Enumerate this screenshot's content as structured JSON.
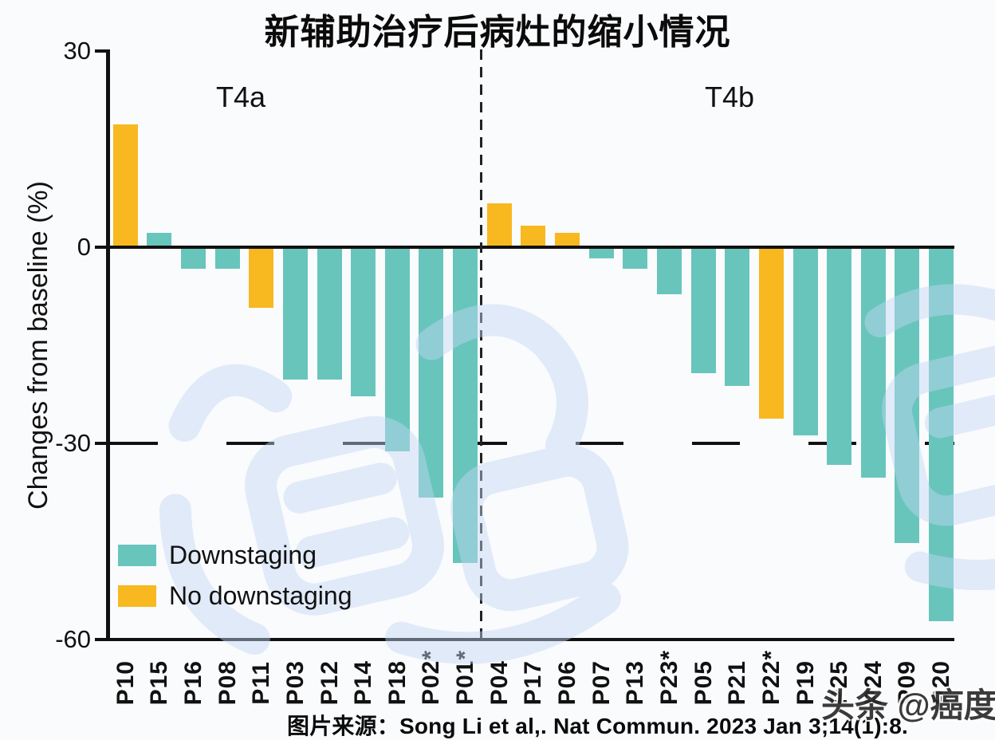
{
  "title": "新辅助治疗后病灶的缩小情况",
  "y_axis": {
    "label": "Changes from baseline (%)"
  },
  "group_labels": {
    "t4a": "T4a",
    "t4b": "T4b"
  },
  "legend": {
    "items": [
      {
        "label": "Downstaging",
        "key": "downstaging",
        "color": "#68c5bc"
      },
      {
        "label": "No downstaging",
        "key": "no_downstaging",
        "color": "#f8b81f"
      }
    ]
  },
  "caption": "图片来源：Song Li et al,. Nat Commun. 2023 Jan 3;14(1):8.",
  "watermarks": {
    "corner": "头条 @癌度",
    "large": "癌度"
  },
  "colors": {
    "downstaging": "#68c5bc",
    "no_downstaging": "#f8b81f",
    "axis": "#111111",
    "watermark_blue": "#c3d7f4",
    "background": "#fafbfd"
  },
  "chart_data": {
    "type": "bar",
    "title": "新辅助治疗后病灶的缩小情况",
    "xlabel": "",
    "ylabel": "Changes from baseline (%)",
    "ylim": [
      -60,
      30
    ],
    "yticks": [
      30,
      0,
      -30,
      -60
    ],
    "reference_line_y": -30,
    "grid": false,
    "legend_position": "lower left",
    "groups": [
      {
        "label": "T4a",
        "patients": [
          "P10",
          "P15",
          "P16",
          "P08",
          "P11",
          "P03",
          "P12",
          "P14",
          "P18",
          "P02*",
          "P01*"
        ]
      },
      {
        "label": "T4b",
        "patients": [
          "P04",
          "P17",
          "P06",
          "P07",
          "P13",
          "P23*",
          "P05",
          "P21",
          "P22*",
          "P19",
          "P25",
          "P24",
          "P09",
          "P20"
        ]
      }
    ],
    "bars": [
      {
        "label": "P10",
        "value": 18.5,
        "status": "no_downstaging",
        "group": "T4a"
      },
      {
        "label": "P15",
        "value": 2,
        "status": "downstaging",
        "group": "T4a"
      },
      {
        "label": "P16",
        "value": -3,
        "status": "downstaging",
        "group": "T4a"
      },
      {
        "label": "P08",
        "value": -3,
        "status": "downstaging",
        "group": "T4a"
      },
      {
        "label": "P11",
        "value": -9,
        "status": "no_downstaging",
        "group": "T4a"
      },
      {
        "label": "P03",
        "value": -20,
        "status": "downstaging",
        "group": "T4a"
      },
      {
        "label": "P12",
        "value": -20,
        "status": "downstaging",
        "group": "T4a"
      },
      {
        "label": "P14",
        "value": -22.5,
        "status": "downstaging",
        "group": "T4a"
      },
      {
        "label": "P18",
        "value": -31,
        "status": "downstaging",
        "group": "T4a"
      },
      {
        "label": "P02*",
        "value": -38,
        "status": "downstaging",
        "group": "T4a"
      },
      {
        "label": "P01*",
        "value": -48,
        "status": "downstaging",
        "group": "T4a"
      },
      {
        "label": "P04",
        "value": 6.5,
        "status": "no_downstaging",
        "group": "T4b"
      },
      {
        "label": "P17",
        "value": 3,
        "status": "no_downstaging",
        "group": "T4b"
      },
      {
        "label": "P06",
        "value": 2,
        "status": "no_downstaging",
        "group": "T4b"
      },
      {
        "label": "P07",
        "value": -1.5,
        "status": "downstaging",
        "group": "T4b"
      },
      {
        "label": "P13",
        "value": -3,
        "status": "downstaging",
        "group": "T4b"
      },
      {
        "label": "P23*",
        "value": -7,
        "status": "downstaging",
        "group": "T4b"
      },
      {
        "label": "P05",
        "value": -19,
        "status": "downstaging",
        "group": "T4b"
      },
      {
        "label": "P21",
        "value": -21,
        "status": "downstaging",
        "group": "T4b"
      },
      {
        "label": "P22*",
        "value": -26,
        "status": "no_downstaging",
        "group": "T4b"
      },
      {
        "label": "P19",
        "value": -28.5,
        "status": "downstaging",
        "group": "T4b"
      },
      {
        "label": "P25",
        "value": -33,
        "status": "downstaging",
        "group": "T4b"
      },
      {
        "label": "P24",
        "value": -35,
        "status": "downstaging",
        "group": "T4b"
      },
      {
        "label": "P09",
        "value": -45,
        "status": "downstaging",
        "group": "T4b"
      },
      {
        "label": "P20",
        "value": -57,
        "status": "downstaging",
        "group": "T4b"
      }
    ]
  }
}
